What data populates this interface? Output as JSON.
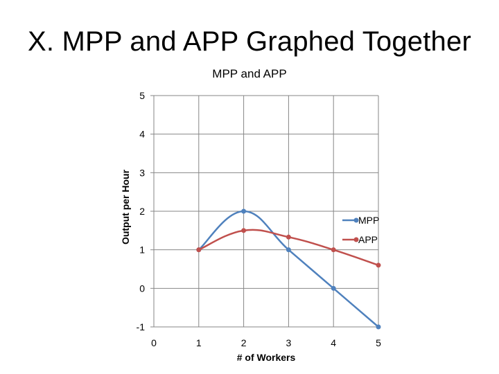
{
  "slide": {
    "title": "X. MPP and APP Graphed Together"
  },
  "chart_data": {
    "type": "line",
    "title": "MPP and APP",
    "xlabel": "# of Workers",
    "ylabel": "Output per Hour",
    "xlim": [
      0,
      5
    ],
    "ylim": [
      -1,
      5
    ],
    "x_ticks": [
      "0",
      "1",
      "2",
      "3",
      "4",
      "5"
    ],
    "y_ticks": [
      "-1",
      "0",
      "1",
      "2",
      "3",
      "4",
      "5"
    ],
    "grid": true,
    "legend": "right",
    "smooth": true,
    "series": [
      {
        "name": "MPP",
        "color": "#4F81BD",
        "x": [
          1,
          2,
          3,
          4,
          5
        ],
        "y": [
          1,
          2,
          1,
          0,
          -1
        ]
      },
      {
        "name": "APP",
        "color": "#C0504D",
        "x": [
          1,
          2,
          3,
          4,
          5
        ],
        "y": [
          1,
          1.5,
          1.33,
          1,
          0.6
        ]
      }
    ]
  }
}
